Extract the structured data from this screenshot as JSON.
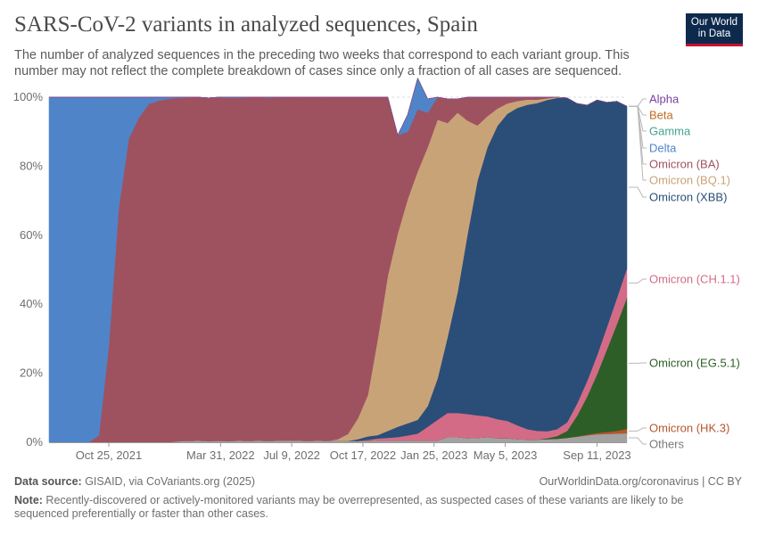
{
  "header": {
    "title": "SARS-CoV-2 variants in analyzed sequences, Spain",
    "subtitle": "The number of analyzed sequences in the preceding two weeks that correspond to each variant group. This number may not reflect the complete breakdown of cases since only a fraction of all cases are sequenced.",
    "logo_line1": "Our World",
    "logo_line2": "in Data"
  },
  "footer": {
    "source_label": "Data source:",
    "source_text": " GISAID, via CoVariants.org (2025)",
    "url": "OurWorldinData.org/coronavirus",
    "license": " | CC BY",
    "note_label": "Note:",
    "note_text": " Recently-discovered or actively-monitored variants may be overrepresented, as suspected cases of these variants are likely to be sequenced preferentially or faster than other cases."
  },
  "chart_data": {
    "type": "area",
    "stacked": true,
    "y_unit": "percent",
    "ylim": [
      0,
      100
    ],
    "y_ticks": [
      "0%",
      "20%",
      "40%",
      "60%",
      "80%",
      "100%"
    ],
    "x_ticks": [
      "Oct 25, 2021",
      "Mar 31, 2022",
      "Jul 9, 2022",
      "Oct 17, 2022",
      "Jan 25, 2023",
      "May 5, 2023",
      "Sep 11, 2023"
    ],
    "grid": "horizontal-dashed",
    "legend": "right, end labels",
    "x": [
      "2021-08-02",
      "2021-08-16",
      "2021-08-30",
      "2021-09-13",
      "2021-09-27",
      "2021-10-11",
      "2021-10-25",
      "2021-11-08",
      "2021-11-22",
      "2021-12-06",
      "2021-12-20",
      "2022-01-03",
      "2022-01-17",
      "2022-01-31",
      "2022-02-14",
      "2022-02-28",
      "2022-03-14",
      "2022-03-28",
      "2022-04-11",
      "2022-04-25",
      "2022-05-09",
      "2022-05-23",
      "2022-06-06",
      "2022-06-20",
      "2022-07-04",
      "2022-07-18",
      "2022-08-01",
      "2022-08-15",
      "2022-08-29",
      "2022-09-12",
      "2022-09-26",
      "2022-10-10",
      "2022-10-24",
      "2022-11-07",
      "2022-11-21",
      "2022-12-05",
      "2022-12-19",
      "2023-01-02",
      "2023-01-16",
      "2023-01-30",
      "2023-02-13",
      "2023-02-27",
      "2023-03-13",
      "2023-03-27",
      "2023-04-10",
      "2023-04-24",
      "2023-05-08",
      "2023-05-22",
      "2023-06-05",
      "2023-06-19",
      "2023-07-03",
      "2023-07-17",
      "2023-07-31",
      "2023-08-14",
      "2023-08-28",
      "2023-09-11",
      "2023-09-25",
      "2023-10-09",
      "2023-10-23"
    ],
    "series": [
      {
        "name": "Others",
        "color": "#a2a2a2",
        "values": [
          0,
          0,
          0,
          0,
          0,
          0,
          0,
          0,
          0,
          0,
          0,
          0,
          0,
          0.3,
          0.4,
          0.5,
          0.3,
          0.4,
          0.3,
          0.5,
          0.4,
          0.5,
          0.4,
          0.5,
          0.5,
          0.5,
          0.4,
          0.5,
          0.4,
          0.4,
          0.4,
          0.3,
          0.4,
          0.5,
          0.5,
          0.5,
          0.5,
          0.5,
          0.5,
          0.5,
          1.5,
          1.5,
          1.2,
          1.3,
          1.5,
          1.2,
          1.2,
          0.9,
          0.8,
          0.8,
          0.9,
          1.0,
          1.3,
          1.6,
          2.0,
          2.3,
          2.4,
          2.5,
          2.6
        ]
      },
      {
        "name": "Omicron (HK.3)",
        "color": "#b4572b",
        "values": [
          0,
          0,
          0,
          0,
          0,
          0,
          0,
          0,
          0,
          0,
          0,
          0,
          0,
          0,
          0,
          0,
          0,
          0,
          0,
          0,
          0,
          0,
          0,
          0,
          0,
          0,
          0,
          0,
          0,
          0,
          0,
          0,
          0,
          0,
          0,
          0,
          0,
          0,
          0,
          0,
          0,
          0,
          0,
          0,
          0,
          0,
          0,
          0,
          0,
          0,
          0,
          0,
          0,
          0.1,
          0.2,
          0.4,
          0.6,
          0.8,
          1.3
        ]
      },
      {
        "name": "Omicron (EG.5.1)",
        "color": "#2e5e27",
        "values": [
          0,
          0,
          0,
          0,
          0,
          0,
          0,
          0,
          0,
          0,
          0,
          0,
          0,
          0,
          0,
          0,
          0,
          0,
          0,
          0,
          0,
          0,
          0,
          0,
          0,
          0,
          0,
          0,
          0,
          0,
          0,
          0,
          0,
          0,
          0,
          0,
          0,
          0,
          0,
          0,
          0,
          0,
          0,
          0,
          0,
          0,
          0,
          0,
          0,
          0,
          0.3,
          0.8,
          2,
          6,
          11,
          17,
          24,
          31,
          38
        ]
      },
      {
        "name": "Omicron (CH.1.1)",
        "color": "#d36b87",
        "values": [
          0,
          0,
          0,
          0,
          0,
          0,
          0,
          0,
          0,
          0,
          0,
          0,
          0,
          0,
          0,
          0,
          0,
          0,
          0,
          0,
          0,
          0,
          0,
          0,
          0,
          0,
          0,
          0,
          0,
          0,
          0,
          0.1,
          0.3,
          0.6,
          0.8,
          1,
          1.5,
          2,
          4,
          6,
          7,
          7,
          7,
          6.5,
          6,
          5.5,
          5,
          4,
          3,
          2.5,
          2,
          2,
          2.5,
          3.5,
          4.5,
          5.5,
          6.5,
          7.5,
          8.5
        ]
      },
      {
        "name": "Omicron (XBB)",
        "color": "#2a4e78",
        "values": [
          0,
          0,
          0,
          0,
          0,
          0,
          0,
          0,
          0,
          0,
          0,
          0,
          0,
          0,
          0,
          0,
          0,
          0,
          0,
          0,
          0,
          0,
          0,
          0,
          0,
          0,
          0,
          0,
          0,
          0,
          0,
          0.5,
          1,
          1,
          2,
          3,
          3.5,
          4,
          6,
          12,
          22,
          35,
          52,
          68,
          78,
          85,
          89,
          92,
          94,
          95,
          96,
          96,
          94,
          87,
          80,
          74,
          65,
          57,
          47
        ]
      },
      {
        "name": "Omicron (BQ.1)",
        "color": "#c9a378",
        "values": [
          0,
          0,
          0,
          0,
          0,
          0,
          0,
          0,
          0,
          0,
          0,
          0,
          0,
          0,
          0,
          0,
          0,
          0,
          0,
          0,
          0,
          0,
          0,
          0,
          0,
          0,
          0,
          0,
          0,
          0.5,
          2,
          6,
          12,
          28,
          45,
          56,
          65,
          72,
          75,
          75,
          62,
          52,
          33,
          16,
          9,
          5,
          3,
          2,
          1.5,
          1,
          0.5,
          0.2,
          0,
          0,
          0,
          0,
          0,
          0,
          0
        ]
      },
      {
        "name": "Omicron (BA)",
        "color": "#9e525f",
        "values": [
          0,
          0,
          0,
          0,
          0,
          2,
          28,
          68,
          88,
          94,
          98,
          99,
          99.5,
          99.5,
          99.5,
          99.5,
          99.5,
          99.5,
          99.5,
          99.3,
          99.5,
          99.5,
          99.4,
          99.5,
          99.5,
          99.5,
          99.6,
          99.5,
          99.6,
          99.1,
          97.6,
          93.1,
          86.3,
          69.9,
          51.7,
          28.5,
          19.5,
          18,
          10,
          6.5,
          7,
          4,
          6.8,
          8.2,
          5.5,
          3.3,
          1.8,
          1.1,
          0.7,
          0.7,
          0.3,
          0,
          0,
          0,
          0,
          0,
          0,
          0,
          0
        ]
      },
      {
        "name": "Delta",
        "color": "#4f84c9",
        "values": [
          100,
          100,
          100,
          100,
          100,
          98,
          72,
          32,
          12,
          6,
          2,
          1,
          0.5,
          0.2,
          0.1,
          0,
          0,
          0.1,
          0.2,
          0.2,
          0.1,
          0,
          0.2,
          0,
          0,
          0,
          0,
          0,
          0,
          0,
          0,
          0,
          0,
          0,
          0,
          0,
          5,
          9,
          4,
          0,
          0,
          0,
          0,
          0,
          0,
          0,
          0,
          0,
          0,
          0,
          0,
          0,
          0,
          0,
          0,
          0,
          0,
          0,
          0
        ]
      },
      {
        "name": "Gamma",
        "color": "#42a48e",
        "values": [
          0,
          0,
          0,
          0,
          0,
          0,
          0,
          0,
          0,
          0,
          0,
          0,
          0,
          0,
          0,
          0,
          0,
          0,
          0,
          0,
          0,
          0,
          0,
          0,
          0,
          0,
          0,
          0,
          0,
          0,
          0,
          0,
          0,
          0,
          0,
          0,
          0,
          0,
          0,
          0,
          0,
          0,
          0,
          0,
          0,
          0,
          0,
          0,
          0,
          0,
          0,
          0,
          0,
          0,
          0,
          0,
          0,
          0,
          0
        ]
      },
      {
        "name": "Beta",
        "color": "#c26b1e",
        "values": [
          0,
          0,
          0,
          0,
          0,
          0,
          0,
          0,
          0,
          0,
          0,
          0,
          0,
          0,
          0,
          0,
          0,
          0,
          0,
          0,
          0,
          0,
          0,
          0,
          0,
          0,
          0,
          0,
          0,
          0,
          0,
          0,
          0,
          0,
          0,
          0,
          0,
          0,
          0,
          0,
          0,
          0,
          0,
          0,
          0,
          0,
          0,
          0,
          0,
          0,
          0,
          0,
          0,
          0,
          0,
          0,
          0,
          0,
          0
        ]
      },
      {
        "name": "Alpha",
        "color": "#7a3fa0",
        "values": [
          0,
          0,
          0,
          0,
          0,
          0,
          0,
          0,
          0,
          0,
          0,
          0,
          0,
          0,
          0,
          0,
          0,
          0,
          0,
          0,
          0,
          0,
          0,
          0,
          0,
          0,
          0,
          0,
          0,
          0,
          0,
          0,
          0,
          0,
          0,
          0,
          0,
          0,
          0,
          0,
          0,
          0,
          0,
          0,
          0,
          0,
          0,
          0,
          0,
          0,
          0,
          0,
          0,
          0,
          0,
          0,
          0,
          0,
          0
        ]
      }
    ],
    "legend_order": [
      "Alpha",
      "Beta",
      "Gamma",
      "Delta",
      "Omicron (BA)",
      "Omicron (BQ.1)",
      "Omicron (XBB)",
      "Omicron (CH.1.1)",
      "Omicron (EG.5.1)",
      "Omicron (HK.3)",
      "Others"
    ]
  }
}
